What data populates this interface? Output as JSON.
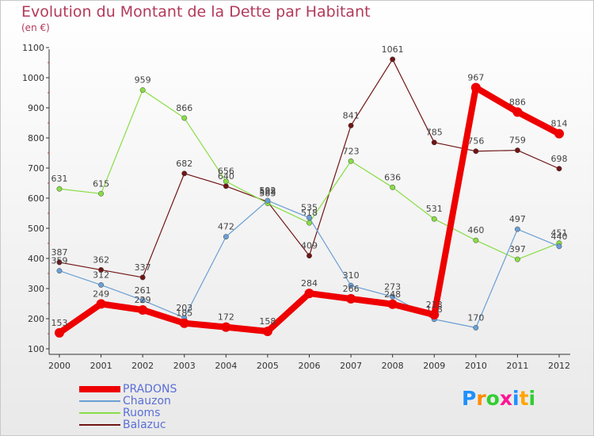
{
  "title": "Evolution du Montant de la Dette par Habitant",
  "subtitle": "(en €)",
  "logo": "Proxiti",
  "chart_data": {
    "type": "line",
    "x": [
      "2000",
      "2001",
      "2002",
      "2003",
      "2004",
      "2005",
      "2006",
      "2007",
      "2008",
      "2009",
      "2010",
      "2011",
      "2012"
    ],
    "ylim": [
      100,
      1100
    ],
    "yticks": [
      100,
      200,
      300,
      400,
      500,
      600,
      700,
      800,
      900,
      1000,
      1100
    ],
    "grid": false,
    "legend_position": "bottom-left",
    "series": [
      {
        "name": "PRADONS",
        "color": "#ee0000",
        "values": [
          153,
          249,
          229,
          185,
          172,
          158,
          284,
          266,
          248,
          213,
          967,
          886,
          814
        ]
      },
      {
        "name": "Chauzon",
        "color": "#6a9fd4",
        "values": [
          359,
          312,
          261,
          203,
          472,
          592,
          535,
          310,
          273,
          198,
          170,
          497,
          440
        ]
      },
      {
        "name": "Ruoms",
        "color": "#88dd44",
        "values": [
          631,
          615,
          959,
          866,
          656,
          583,
          518,
          723,
          636,
          531,
          460,
          397,
          451
        ]
      },
      {
        "name": "Balazuc",
        "color": "#701515",
        "values": [
          387,
          362,
          337,
          682,
          640,
          588,
          409,
          841,
          1061,
          785,
          756,
          759,
          698
        ]
      }
    ]
  }
}
